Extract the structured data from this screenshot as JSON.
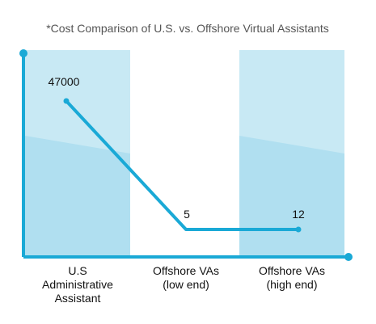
{
  "chart_data": {
    "type": "line",
    "title": "*Cost Comparison of U.S. vs. Offshore Virtual Assistants",
    "xlabel": "",
    "ylabel": "",
    "categories": [
      [
        "U.S",
        "Administrative",
        "Assistant"
      ],
      [
        "Offshore VAs",
        "(low end)"
      ],
      [
        "Offshore VAs",
        "(high end)"
      ]
    ],
    "values": [
      47000,
      5,
      12
    ],
    "data_labels": [
      "47000",
      "5",
      "12"
    ],
    "grid": false,
    "legend": "none"
  },
  "colors": {
    "line": "#1aa9d6",
    "axis": "#1aa9d6",
    "band_light": "#c8e9f4",
    "band_dark": "#b0dff0",
    "text": "#111111",
    "title": "#555555"
  }
}
